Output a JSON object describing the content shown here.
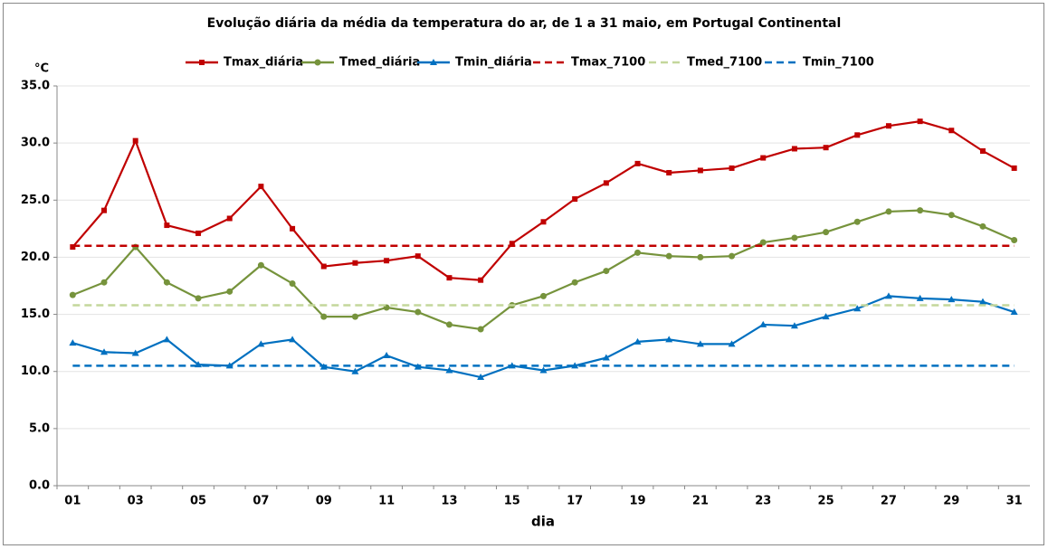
{
  "chart_data": {
    "type": "line",
    "title": "Evolução diária da média da temperatura do ar, de 1 a 31 maio, em Portugal Continental",
    "y_label": "°C",
    "x_label": "dia",
    "categories": [
      "01",
      null,
      "03",
      null,
      "05",
      null,
      "07",
      null,
      "09",
      null,
      "11",
      null,
      "13",
      null,
      "15",
      null,
      "17",
      null,
      "19",
      null,
      "21",
      null,
      "23",
      null,
      "25",
      null,
      "27",
      null,
      "29",
      null,
      "31"
    ],
    "ylim": [
      0,
      35
    ],
    "yticks": [
      {
        "value": 0,
        "label": "0.0"
      },
      {
        "value": 5,
        "label": "5.0"
      },
      {
        "value": 10,
        "label": "10.0"
      },
      {
        "value": 15,
        "label": "15.0"
      },
      {
        "value": 20,
        "label": "20.0"
      },
      {
        "value": 25,
        "label": "25.0"
      },
      {
        "value": 30,
        "label": "30.0"
      },
      {
        "value": 35,
        "label": "35.0"
      }
    ],
    "grid": true,
    "legend": "top",
    "series": [
      {
        "name": "Tmax_diária",
        "color": "#c00000",
        "marker": "square",
        "line": "solid",
        "values": [
          20.9,
          24.1,
          30.2,
          22.8,
          22.1,
          23.4,
          26.2,
          22.5,
          19.2,
          19.5,
          19.7,
          20.1,
          18.2,
          18.0,
          21.2,
          23.1,
          25.1,
          26.5,
          28.2,
          27.4,
          27.6,
          27.8,
          28.7,
          29.5,
          29.6,
          30.7,
          31.5,
          31.9,
          31.1,
          29.3,
          27.8
        ]
      },
      {
        "name": "Tmed_diária",
        "color": "#76933c",
        "marker": "circle",
        "line": "solid",
        "values": [
          16.7,
          17.8,
          20.9,
          17.8,
          16.4,
          17.0,
          19.3,
          17.7,
          14.8,
          14.8,
          15.6,
          15.2,
          14.1,
          13.7,
          15.8,
          16.6,
          17.8,
          18.8,
          20.4,
          20.1,
          20.0,
          20.1,
          21.3,
          21.7,
          22.2,
          23.1,
          24.0,
          24.1,
          23.7,
          22.7,
          21.5
        ]
      },
      {
        "name": "Tmin_diária",
        "color": "#0070c0",
        "marker": "triangle",
        "line": "solid",
        "values": [
          12.5,
          11.7,
          11.6,
          12.8,
          10.6,
          10.5,
          12.4,
          12.8,
          10.4,
          10.0,
          11.4,
          10.4,
          10.1,
          9.5,
          10.5,
          10.1,
          10.5,
          11.2,
          12.6,
          12.8,
          12.4,
          12.4,
          14.1,
          14.0,
          14.8,
          15.5,
          16.6,
          16.4,
          16.3,
          16.1,
          15.2
        ]
      },
      {
        "name": "Tmax_7100",
        "color": "#c00000",
        "marker": "none",
        "line": "dashed",
        "values": [
          21.0,
          21.0,
          21.0,
          21.0,
          21.0,
          21.0,
          21.0,
          21.0,
          21.0,
          21.0,
          21.0,
          21.0,
          21.0,
          21.0,
          21.0,
          21.0,
          21.0,
          21.0,
          21.0,
          21.0,
          21.0,
          21.0,
          21.0,
          21.0,
          21.0,
          21.0,
          21.0,
          21.0,
          21.0,
          21.0,
          21.0
        ]
      },
      {
        "name": "Tmed_7100",
        "color": "#c4d79b",
        "marker": "none",
        "line": "dashed",
        "values": [
          15.8,
          15.8,
          15.8,
          15.8,
          15.8,
          15.8,
          15.8,
          15.8,
          15.8,
          15.8,
          15.8,
          15.8,
          15.8,
          15.8,
          15.8,
          15.8,
          15.8,
          15.8,
          15.8,
          15.8,
          15.8,
          15.8,
          15.8,
          15.8,
          15.8,
          15.8,
          15.8,
          15.8,
          15.8,
          15.8,
          15.8
        ]
      },
      {
        "name": "Tmin_7100",
        "color": "#0070c0",
        "marker": "none",
        "line": "dashed",
        "values": [
          10.5,
          10.5,
          10.5,
          10.5,
          10.5,
          10.5,
          10.5,
          10.5,
          10.5,
          10.5,
          10.5,
          10.5,
          10.5,
          10.5,
          10.5,
          10.5,
          10.5,
          10.5,
          10.5,
          10.5,
          10.5,
          10.5,
          10.5,
          10.5,
          10.5,
          10.5,
          10.5,
          10.5,
          10.5,
          10.5,
          10.5
        ]
      }
    ]
  }
}
